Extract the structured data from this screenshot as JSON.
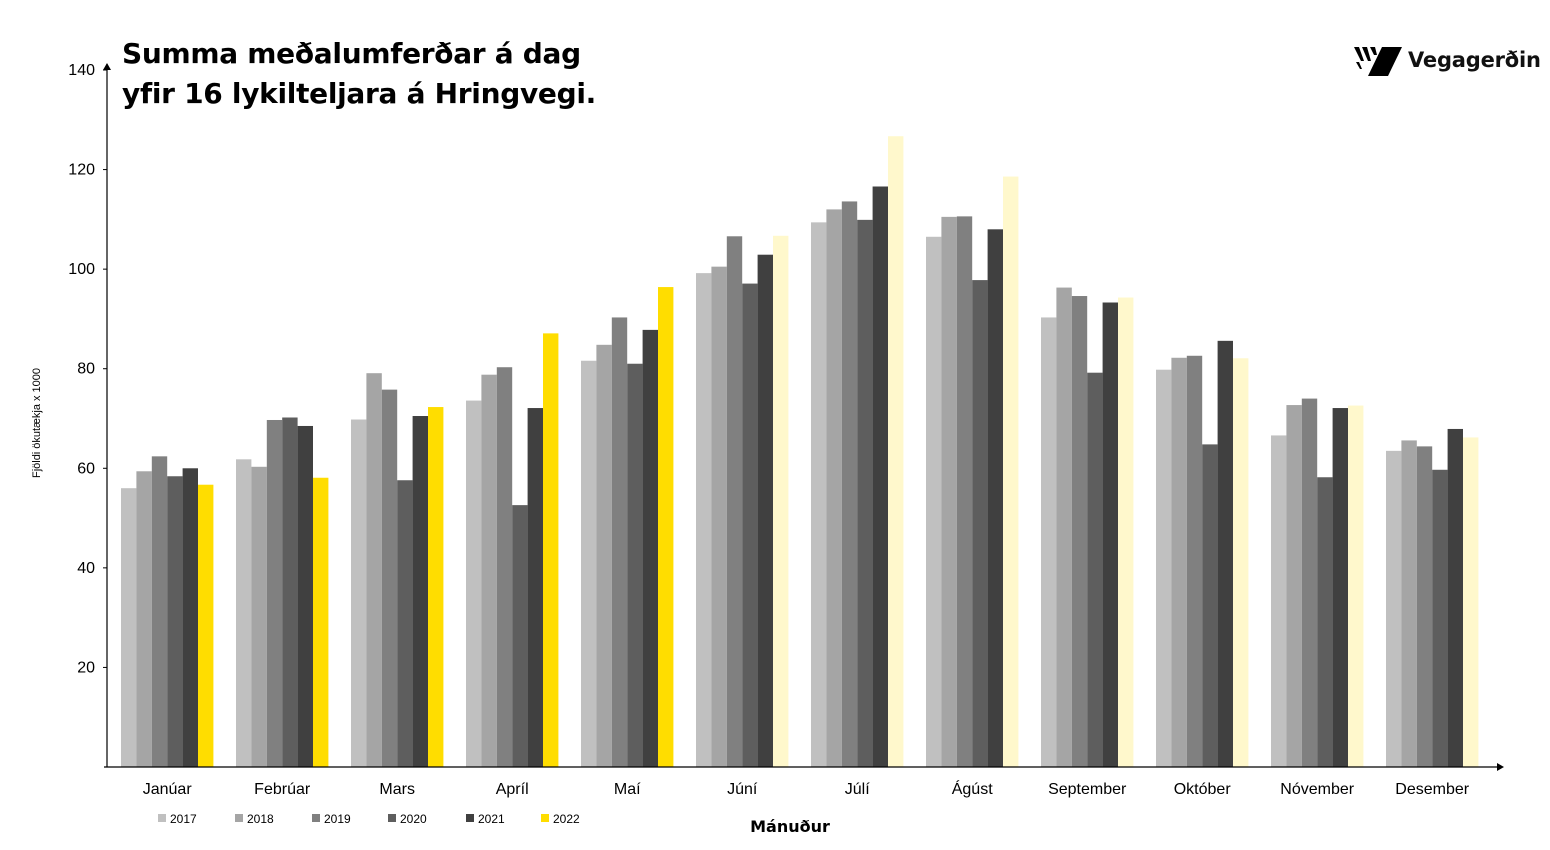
{
  "title": {
    "line1": "Summa meðalumferðar á dag",
    "line2": "yfir 16 lykilteljara á Hringvegi."
  },
  "logo": {
    "text": "Vegagerðin",
    "icon": "vegagerdin-logo-icon"
  },
  "chart_data": {
    "type": "bar",
    "xlabel": "Mánuður",
    "ylabel": "Fjöldi ökutækja x 1000",
    "ylim": [
      0,
      140
    ],
    "yticks": [
      20,
      40,
      60,
      80,
      100,
      120,
      140
    ],
    "grid": false,
    "legend_position": "bottom-left",
    "categories": [
      "Janúar",
      "Febrúar",
      "Mars",
      "Apríl",
      "Maí",
      "Júní",
      "Júlí",
      "Ágúst",
      "September",
      "Október",
      "Nóvember",
      "Desember"
    ],
    "series": [
      {
        "name": "2017",
        "color": "#c0c0c0",
        "values": [
          56.0,
          61.8,
          69.8,
          73.6,
          81.6,
          99.2,
          109.4,
          106.5,
          90.3,
          79.8,
          66.6,
          63.5
        ]
      },
      {
        "name": "2018",
        "color": "#a5a5a5",
        "values": [
          59.4,
          60.3,
          79.1,
          78.8,
          84.8,
          100.5,
          112.0,
          110.5,
          96.3,
          82.2,
          72.7,
          65.6
        ]
      },
      {
        "name": "2019",
        "color": "#808080",
        "values": [
          62.4,
          69.7,
          75.8,
          80.3,
          90.3,
          106.6,
          113.6,
          110.6,
          94.6,
          82.6,
          74.0,
          64.4
        ]
      },
      {
        "name": "2020",
        "color": "#5e5e5e",
        "values": [
          58.4,
          70.2,
          57.6,
          52.6,
          81.0,
          97.1,
          109.9,
          97.8,
          79.2,
          64.8,
          58.2,
          59.7
        ]
      },
      {
        "name": "2021",
        "color": "#404040",
        "values": [
          60.0,
          68.5,
          70.5,
          72.1,
          87.8,
          102.9,
          116.6,
          108.0,
          93.3,
          85.6,
          72.1,
          67.9
        ]
      },
      {
        "name": "2022",
        "color": "#ffdd00",
        "color_light": "#fff8cc",
        "values": [
          56.7,
          58.1,
          72.3,
          87.1,
          96.4,
          106.7,
          126.7,
          118.6,
          94.3,
          82.1,
          72.6,
          66.2
        ],
        "light_from_index": 5
      }
    ]
  }
}
